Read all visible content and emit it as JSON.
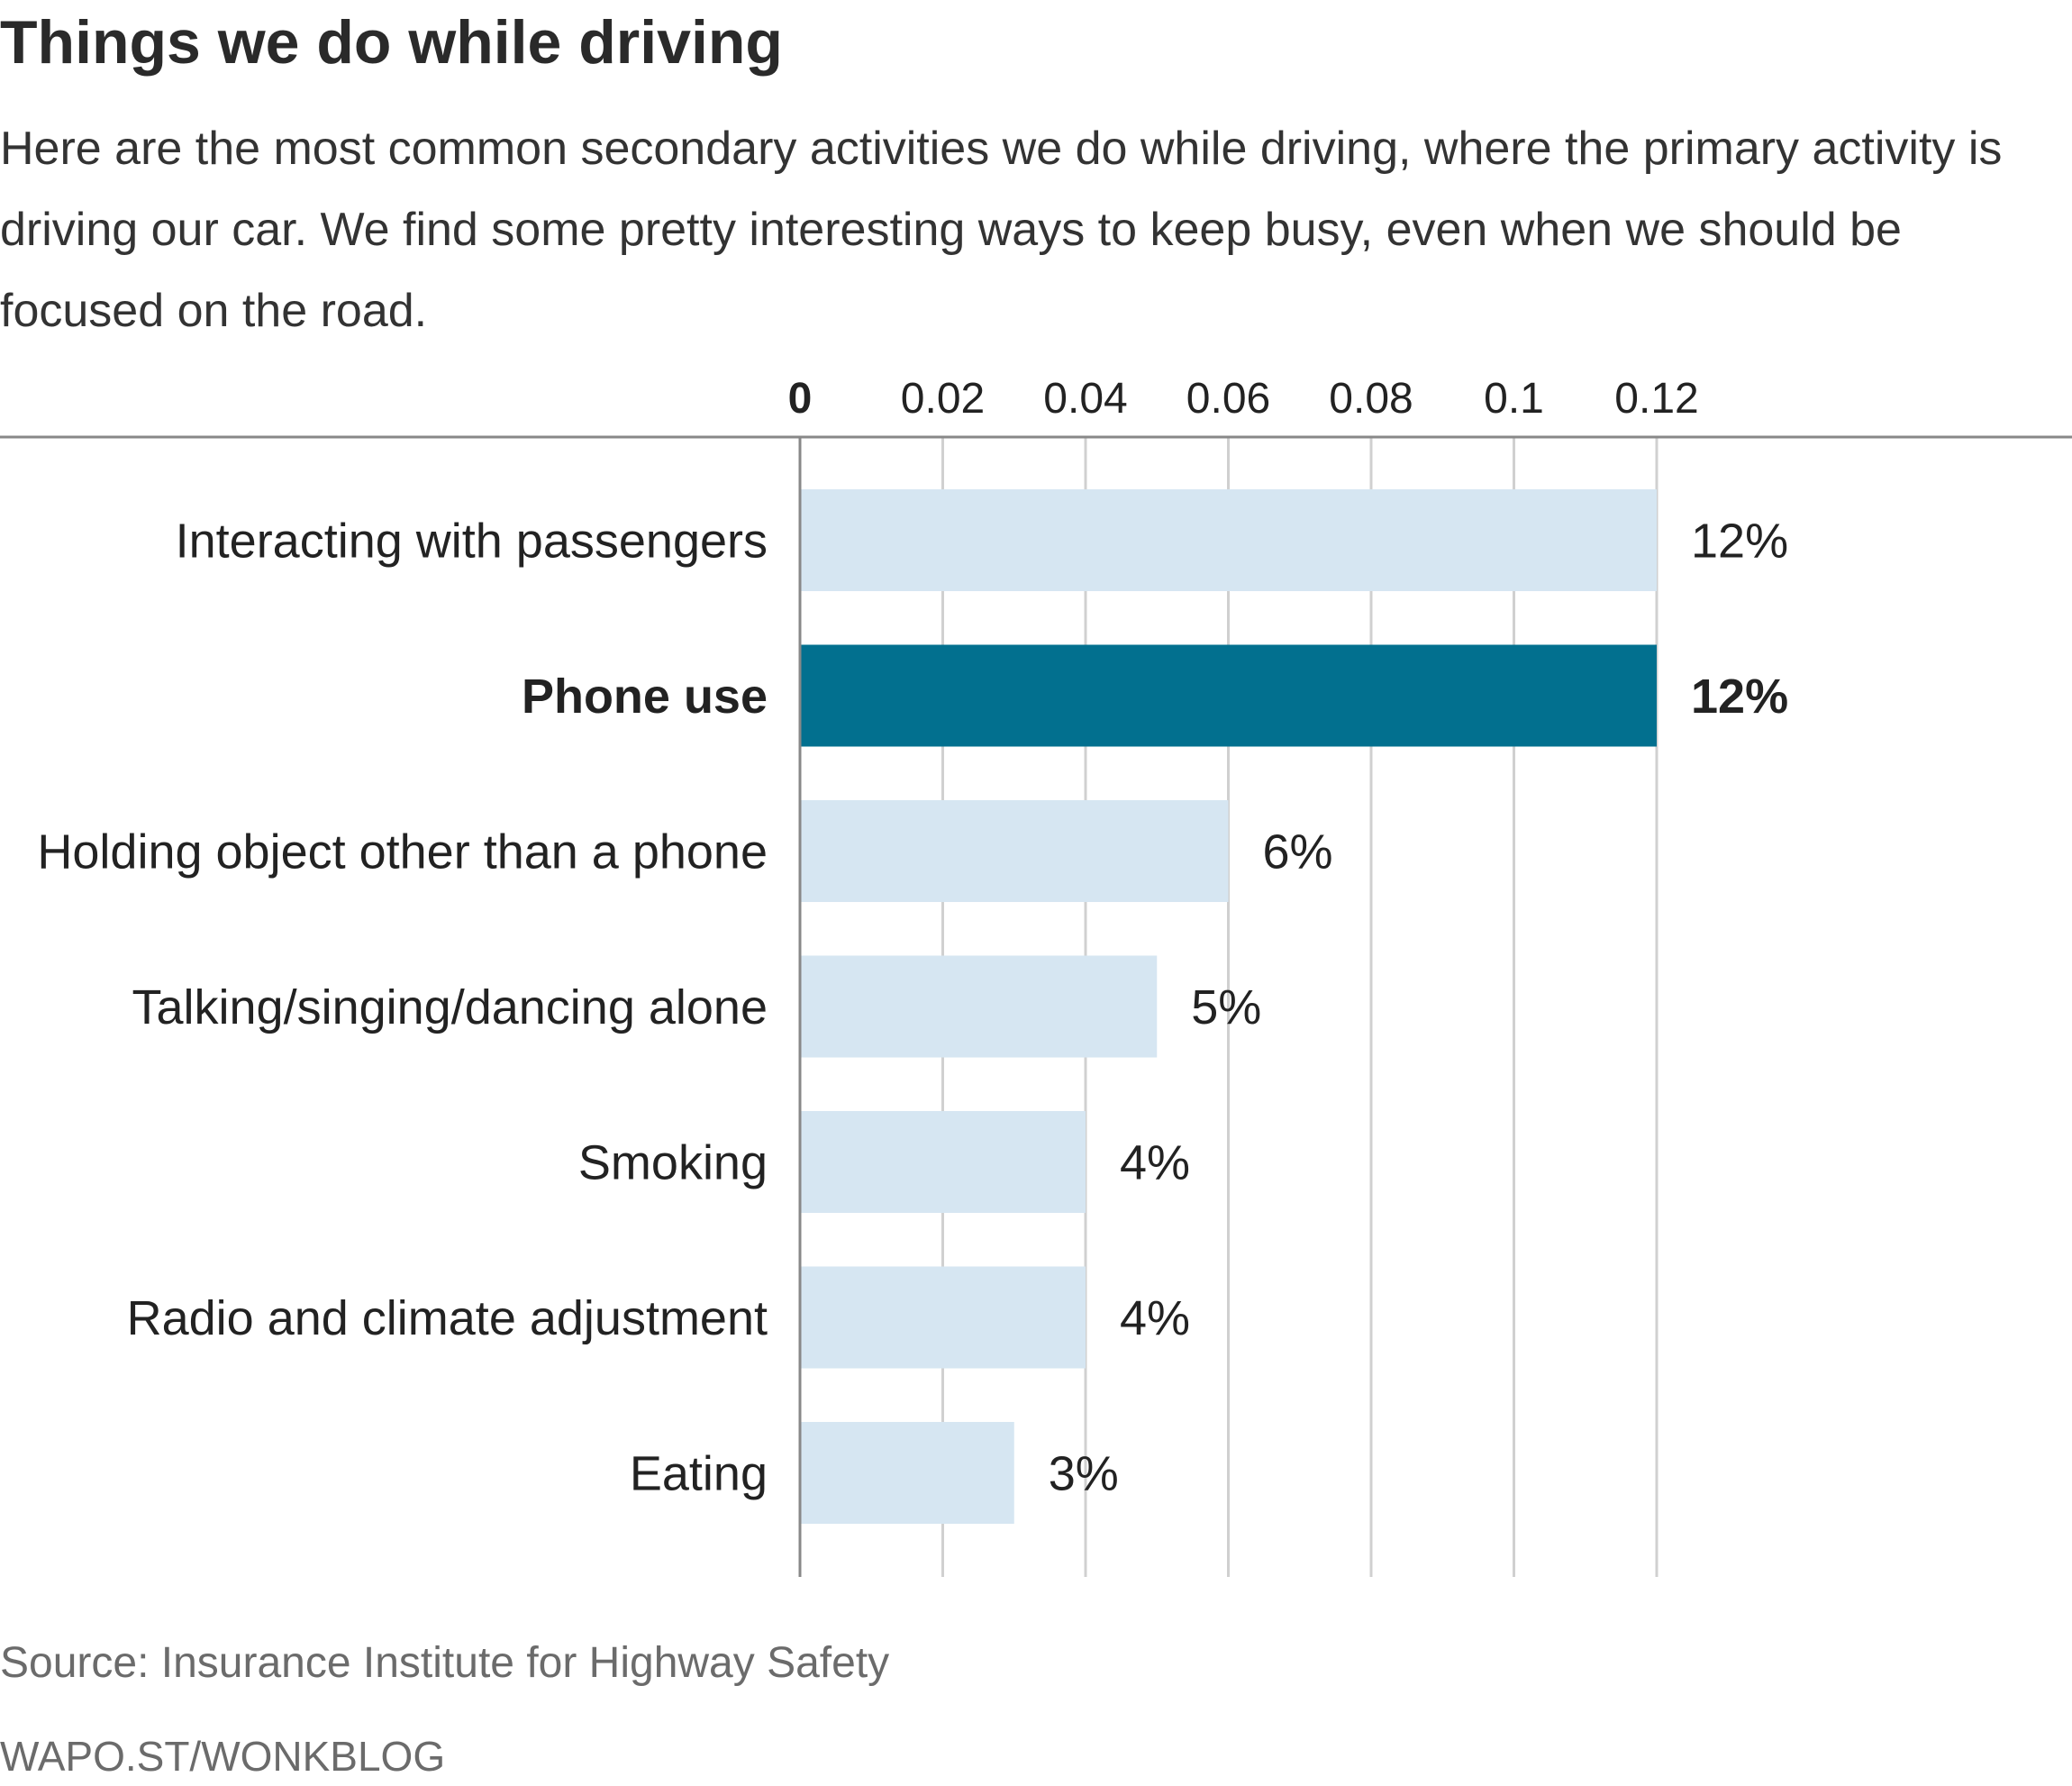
{
  "header": {
    "title": "Things we do while driving",
    "subtitle": "Here are the most common secondary activities we do while driving, where the primary activity is driving our car. We find some pretty interesting ways to keep busy, even when we should be focused on the road."
  },
  "footer": {
    "source": "Source: Insurance Institute for Highway Safety",
    "credit": "WAPO.ST/WONKBLOG"
  },
  "colors": {
    "bar": "#d6e6f2",
    "highlight": "#02708f",
    "grid": "#d0d0d0",
    "axis": "#888888",
    "text": "#222222"
  },
  "chart_data": {
    "type": "bar",
    "orientation": "horizontal",
    "categories": [
      "Interacting with passengers",
      "Phone use",
      "Holding object other than a phone",
      "Talking/singing/dancing alone",
      "Smoking",
      "Radio and climate adjustment",
      "Eating"
    ],
    "values": [
      0.12,
      0.12,
      0.06,
      0.05,
      0.04,
      0.04,
      0.03
    ],
    "value_labels": [
      "12%",
      "12%",
      "6%",
      "5%",
      "4%",
      "4%",
      "3%"
    ],
    "highlight": [
      "Phone use"
    ],
    "xticks": [
      0,
      0.02,
      0.04,
      0.06,
      0.08,
      0.1,
      0.12
    ],
    "xtick_labels": [
      "0",
      "0.02",
      "0.04",
      "0.06",
      "0.08",
      "0.1",
      "0.12"
    ],
    "xlim": [
      0,
      0.12
    ],
    "grid": true,
    "axis_position": "top",
    "title": "",
    "xlabel": "",
    "ylabel": ""
  }
}
